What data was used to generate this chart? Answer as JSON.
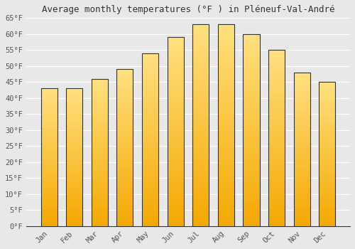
{
  "title": "Average monthly temperatures (°F ) in Pléneuf-Val-André",
  "months": [
    "Jan",
    "Feb",
    "Mar",
    "Apr",
    "May",
    "Jun",
    "Jul",
    "Aug",
    "Sep",
    "Oct",
    "Nov",
    "Dec"
  ],
  "values": [
    43,
    43,
    46,
    49,
    54,
    59,
    63,
    63,
    60,
    55,
    48,
    45
  ],
  "bar_color_bottom": "#F5A800",
  "bar_color_top": "#FFD966",
  "bar_edge_color": "#333333",
  "ylim": [
    0,
    65
  ],
  "yticks": [
    0,
    5,
    10,
    15,
    20,
    25,
    30,
    35,
    40,
    45,
    50,
    55,
    60,
    65
  ],
  "ytick_labels": [
    "0°F",
    "5°F",
    "10°F",
    "15°F",
    "20°F",
    "25°F",
    "30°F",
    "35°F",
    "40°F",
    "45°F",
    "50°F",
    "55°F",
    "60°F",
    "65°F"
  ],
  "background_color": "#e8e8e8",
  "plot_bg_color": "#e8e8e8",
  "grid_color": "#ffffff",
  "title_fontsize": 9,
  "tick_fontsize": 7.5,
  "bar_width": 0.65
}
